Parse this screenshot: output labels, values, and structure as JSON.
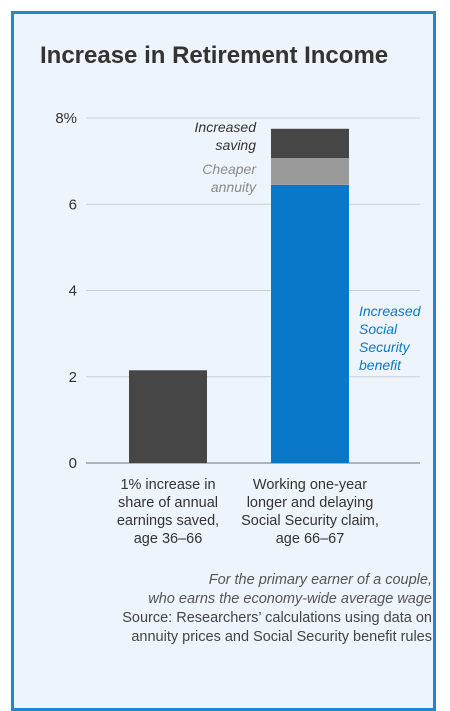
{
  "colors": {
    "frame_border": "#1f88d2",
    "background": "#eef4fb",
    "dark_bar": "#464646",
    "gray_bar": "#9a9a9a",
    "blue_bar": "#0a78c8"
  },
  "header": {
    "title": "Increase in Retirement Income"
  },
  "chart_data": {
    "type": "bar",
    "stacked": true,
    "title": "Increase in Retirement Income",
    "y_unit": "%",
    "ylim": [
      0,
      8
    ],
    "yticks": [
      0,
      2,
      4,
      6,
      8
    ],
    "ytick_labels": [
      "0",
      "2",
      "4",
      "6",
      "8%"
    ],
    "grid": true,
    "categories": [
      "1% increase in share of annual earnings saved, age 36–66",
      "Working one-year longer and delaying Social Security claim, age 66–67"
    ],
    "category_lines": [
      [
        "1% increase in",
        "share of annual",
        "earnings saved,",
        "age 36–66"
      ],
      [
        "Working one-year",
        "longer and delaying",
        "Social Security claim,",
        "age 66–67"
      ]
    ],
    "series": [
      {
        "name": "Increased Social Security benefit",
        "label_lines": [
          "Increased",
          "Social",
          "Security",
          "benefit"
        ],
        "color": "#0a78c8",
        "values": [
          0,
          6.45
        ]
      },
      {
        "name": "Cheaper annuity",
        "label_lines": [
          "Cheaper",
          "annuity"
        ],
        "color": "#9a9a9a",
        "values": [
          0,
          0.62
        ]
      },
      {
        "name": "Increased saving",
        "label_lines": [
          "Increased",
          "saving"
        ],
        "color": "#464646",
        "values": [
          2.15,
          0.68
        ]
      }
    ]
  },
  "footnote": {
    "note_line1": "For the primary earner of a couple,",
    "note_line2": "who earns the economy-wide average wage",
    "source_line1": "Source: Researchers’ calculations using data on",
    "source_line2": "annuity prices and Social Security benefit rules"
  }
}
